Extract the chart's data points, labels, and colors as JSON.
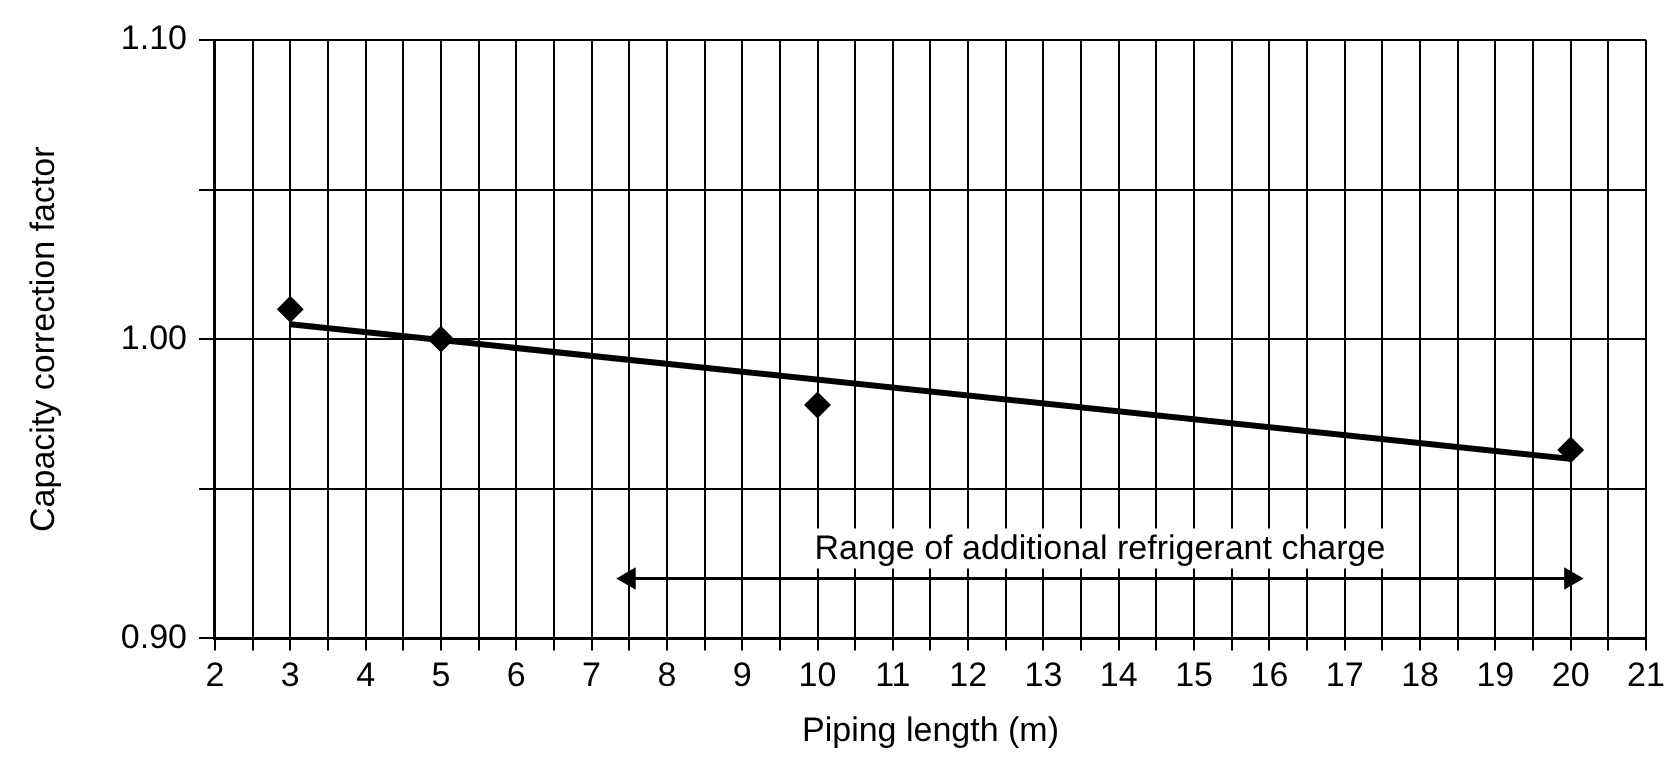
{
  "chart_data": {
    "type": "scatter",
    "xlabel": "Piping length (m)",
    "ylabel": "Capacity correction factor",
    "xlim": [
      2,
      21
    ],
    "xticks": [
      2,
      {
        "value": 2.5,
        "label": null
      },
      3,
      {
        "value": 3.5,
        "label": null
      },
      4,
      {
        "value": 4.5,
        "label": null
      },
      5,
      {
        "value": 5.5,
        "label": null
      },
      6,
      {
        "value": 6.5,
        "label": null
      },
      7,
      {
        "value": 7.5,
        "label": null
      },
      8,
      {
        "value": 8.5,
        "label": null
      },
      9,
      {
        "value": 9.5,
        "label": null
      },
      10,
      {
        "value": 10.5,
        "label": null
      },
      11,
      {
        "value": 11.5,
        "label": null
      },
      12,
      {
        "value": 12.5,
        "label": null
      },
      13,
      {
        "value": 13.5,
        "label": null
      },
      14,
      {
        "value": 14.5,
        "label": null
      },
      15,
      {
        "value": 15.5,
        "label": null
      },
      16,
      {
        "value": 16.5,
        "label": null
      },
      17,
      {
        "value": 17.5,
        "label": null
      },
      18,
      {
        "value": 18.5,
        "label": null
      },
      19,
      {
        "value": 19.5,
        "label": null
      },
      20,
      {
        "value": 20.5,
        "label": null
      },
      21
    ],
    "ylim": [
      0.9,
      1.1
    ],
    "yticks": [
      {
        "value": 0.9,
        "label": "0.90"
      },
      {
        "value": 0.95,
        "label": null
      },
      {
        "value": 1.0,
        "label": "1.00"
      },
      {
        "value": 1.05,
        "label": null
      },
      {
        "value": 1.1,
        "label": "1.10"
      }
    ],
    "grid": true,
    "legend": false,
    "series": [
      {
        "color": "#000000",
        "marker": "diamond",
        "x": [
          3,
          5,
          10,
          20
        ],
        "values": [
          1.01,
          1.0,
          0.978,
          0.963
        ]
      },
      {
        "type": "line",
        "color": "#000000",
        "marker": "none",
        "line_style": "solid",
        "x": [
          3,
          20
        ],
        "values": [
          1.005,
          0.96
        ]
      },
      {
        "type": "line",
        "color": "#000000",
        "marker": "triangle",
        "line_style": "solid",
        "x": [
          7.5,
          20
        ],
        "values": [
          0.92,
          0.92
        ]
      }
    ],
    "annotations": [
      {
        "text": "Range of additional refrigerant charge",
        "x": 13.75,
        "y": 0.92
      }
    ]
  }
}
